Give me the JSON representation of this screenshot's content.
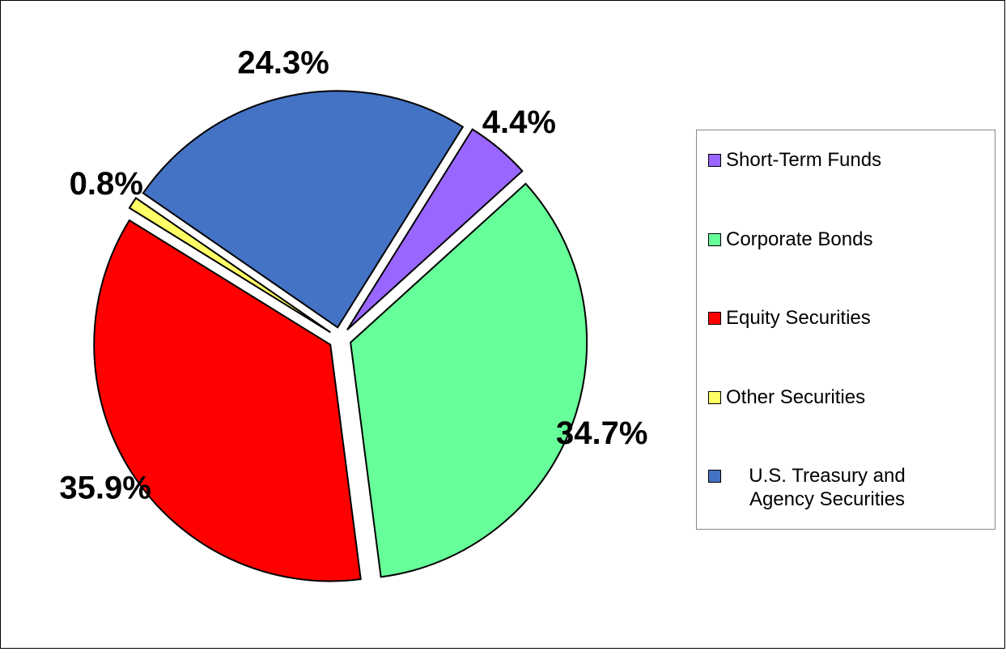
{
  "chart_data": {
    "type": "pie",
    "categories": [
      "Short-Term Funds",
      "Corporate Bonds",
      "Equity Securities",
      "Other Securities",
      "U.S. Treasury and Agency Securities"
    ],
    "values": [
      4.4,
      34.7,
      35.9,
      0.8,
      24.3
    ],
    "value_labels": [
      "4.4%",
      "34.7%",
      "35.9%",
      "0.8%",
      "24.3%"
    ],
    "colors": [
      "#9966ff",
      "#66ff99",
      "#ff0000",
      "#ffff66",
      "#4472c4"
    ],
    "legend": "right"
  }
}
